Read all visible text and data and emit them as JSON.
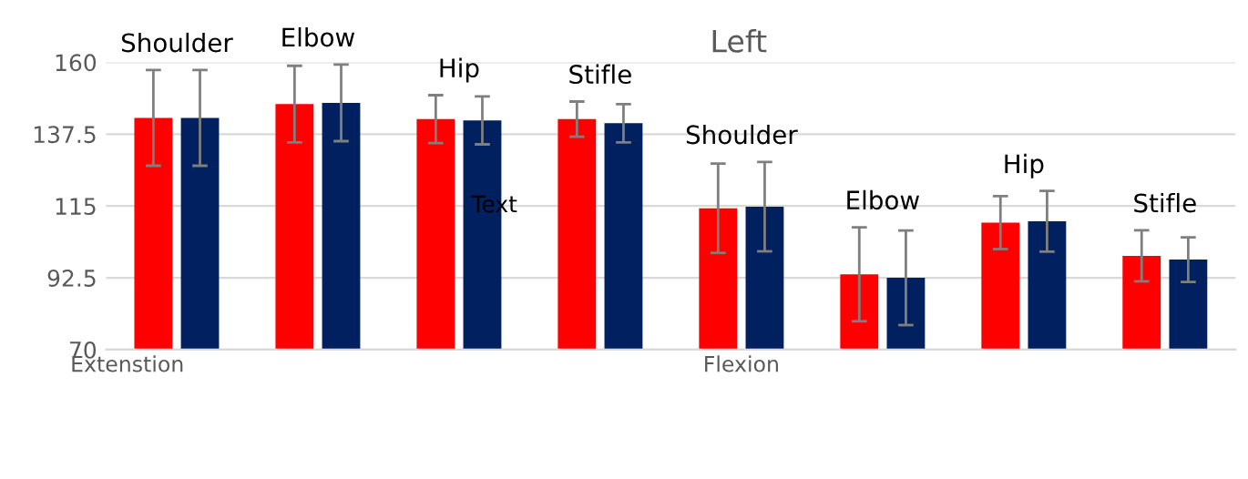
{
  "chart_data": {
    "type": "bar",
    "title": "Left",
    "categories": [
      "Shoulder",
      "Elbow",
      "Hip",
      "Stifle",
      "Shoulder",
      "Elbow",
      "Hip",
      "Stifle"
    ],
    "series": [
      {
        "color": "#ff0000",
        "values": [
          142.6,
          146.9,
          142.2,
          142.2,
          114.3,
          93.6,
          109.8,
          99.4
        ],
        "errors": [
          15,
          12,
          7.5,
          5.5,
          14,
          14.7,
          8.3,
          8
        ]
      },
      {
        "color": "#002060",
        "values": [
          142.6,
          147.3,
          141.8,
          140.9,
          114.8,
          92.5,
          110.2,
          98.2
        ],
        "errors": [
          15,
          12,
          7.5,
          6,
          14,
          14.8,
          9.5,
          7
        ]
      }
    ],
    "ylim": [
      70,
      160
    ],
    "yticks": [
      70,
      92.5,
      115,
      137.5,
      160
    ],
    "grid": "y",
    "annotations": [
      "Extenstion",
      "Flexion",
      "Text"
    ]
  }
}
